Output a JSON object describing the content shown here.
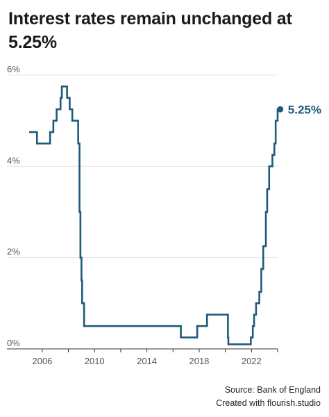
{
  "title": "Interest rates remain unchanged at 5.25%",
  "source": "Source: Bank of England",
  "credit": "Created with flourish.studio",
  "colors": {
    "line": "#1f5a7a",
    "grid": "#e6e6e6",
    "axis": "#333333"
  },
  "chart_data": {
    "type": "line",
    "title": "Interest rates remain unchanged at 5.25%",
    "xlabel": "",
    "ylabel": "",
    "xlim": [
      2005,
      2024
    ],
    "ylim": [
      0,
      6
    ],
    "step": true,
    "y_tick_labels": [
      "0%",
      "2%",
      "4%",
      "6%"
    ],
    "y_ticks": [
      0,
      2,
      4,
      6
    ],
    "x_tick_labels": [
      "2006",
      "2010",
      "2014",
      "2018",
      "2022"
    ],
    "x_ticks": [
      2006,
      2010,
      2014,
      2018,
      2022
    ],
    "grid": "horizontal",
    "end_label": "5.25%",
    "series": [
      {
        "x": [
          2005.0,
          2005.6,
          2006.6,
          2006.85,
          2007.1,
          2007.4,
          2007.5,
          2007.9,
          2008.1,
          2008.3,
          2008.75,
          2008.85,
          2008.92,
          2009.0,
          2009.05,
          2009.2,
          2016.6,
          2017.85,
          2018.6,
          2020.2,
          2020.23,
          2021.95,
          2022.1,
          2022.2,
          2022.35,
          2022.6,
          2022.75,
          2022.9,
          2023.1,
          2023.2,
          2023.35,
          2023.6,
          2023.75
        ],
        "y": [
          4.75,
          4.5,
          4.75,
          5.0,
          5.25,
          5.5,
          5.75,
          5.5,
          5.25,
          5.0,
          4.5,
          3.0,
          2.0,
          1.5,
          1.0,
          0.5,
          0.25,
          0.5,
          0.75,
          0.25,
          0.1,
          0.25,
          0.5,
          0.75,
          1.0,
          1.25,
          1.75,
          2.25,
          3.0,
          3.5,
          4.0,
          4.25,
          4.5
        ]
      }
    ],
    "end_points": {
      "x": [
        2023.85,
        2024.0,
        2024.2
      ],
      "y": [
        5.0,
        5.25,
        5.25
      ]
    }
  }
}
